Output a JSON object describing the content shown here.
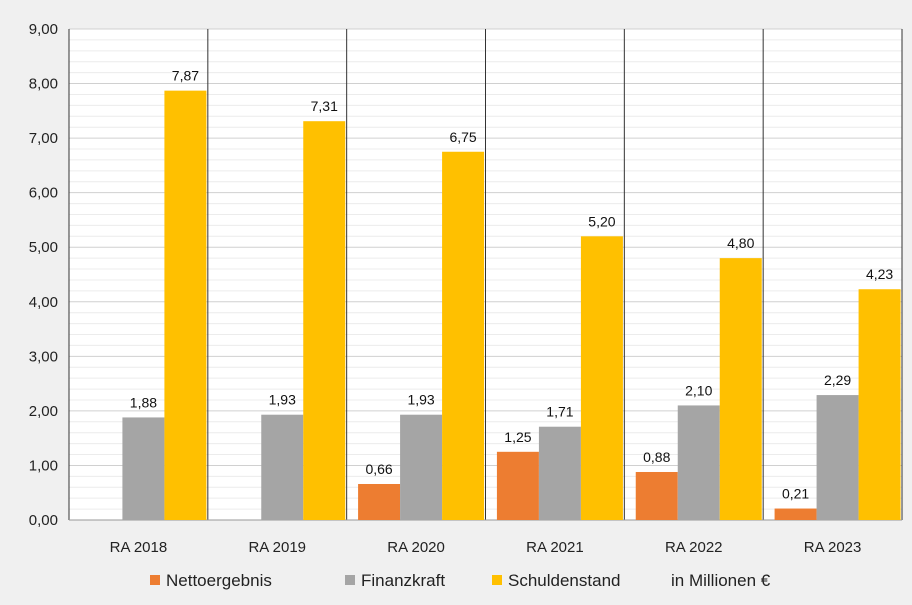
{
  "chart_data": {
    "type": "bar",
    "categories": [
      "RA 2018",
      "RA 2019",
      "RA 2020",
      "RA 2021",
      "RA 2022",
      "RA 2023"
    ],
    "series": [
      {
        "name": "Nettoergebnis",
        "color": "#ed7d31",
        "values": [
          null,
          null,
          0.66,
          1.25,
          0.88,
          0.21
        ],
        "labels": [
          "",
          "",
          "0,66",
          "1,25",
          "0,88",
          "0,21"
        ]
      },
      {
        "name": "Finanzkraft",
        "color": "#a5a5a5",
        "values": [
          1.88,
          1.93,
          1.93,
          1.71,
          2.1,
          2.29
        ],
        "labels": [
          "1,88",
          "1,93",
          "1,93",
          "1,71",
          "2,10",
          "2,29"
        ]
      },
      {
        "name": "Schuldenstand",
        "color": "#ffc000",
        "values": [
          7.87,
          7.31,
          6.75,
          5.2,
          4.8,
          4.23
        ],
        "labels": [
          "7,87",
          "7,31",
          "6,75",
          "5,20",
          "4,80",
          "4,23"
        ]
      }
    ],
    "ylim": [
      0,
      9
    ],
    "yticks": [
      "0,00",
      "1,00",
      "2,00",
      "3,00",
      "4,00",
      "5,00",
      "6,00",
      "7,00",
      "8,00",
      "9,00"
    ],
    "grid": true,
    "legend_position": "bottom",
    "legend_note": "in Millionen €"
  }
}
